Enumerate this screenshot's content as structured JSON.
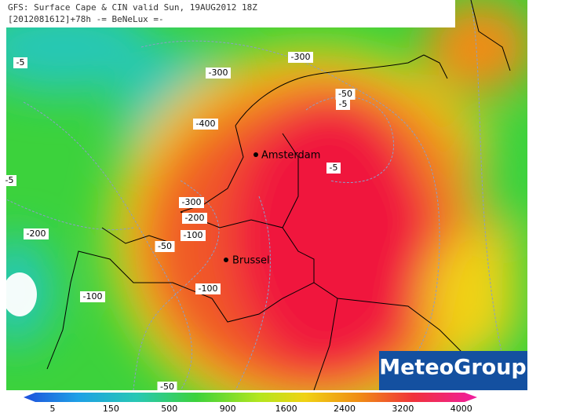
{
  "header": {
    "line1": "GFS: Surface Cape & CIN valid Sun, 19AUG2012 18Z",
    "line2": "[2012081612]+78h -= BeNeLux =-"
  },
  "contour_labels": [
    "-5",
    "-300",
    "-300",
    "-400",
    "-50",
    "-5",
    "-5",
    "-5",
    "-300",
    "-200",
    "-200",
    "-100",
    "-50",
    "-100",
    "-100",
    "-50"
  ],
  "cities": [
    "Amsterdam",
    "Brussel"
  ],
  "logo": "MeteoGroup",
  "colorbar": {
    "labels": [
      "5",
      "150",
      "500",
      "900",
      "1600",
      "2400",
      "3200",
      "4000"
    ]
  }
}
